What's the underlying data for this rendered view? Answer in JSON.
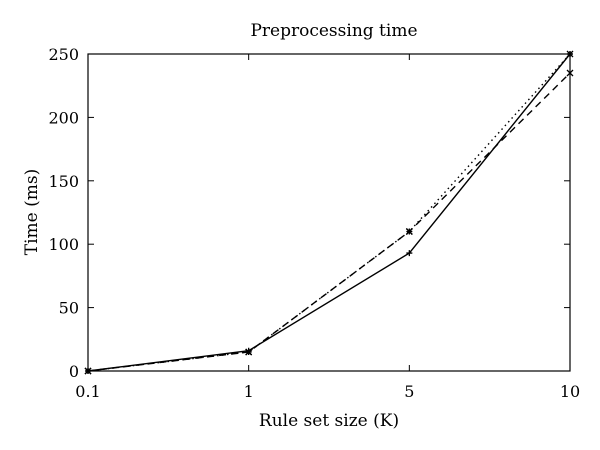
{
  "chart_data": {
    "type": "line",
    "title": "Preprocessing time",
    "xlabel": "Rule set size (K)",
    "ylabel": "Time (ms)",
    "categories": [
      "0.1",
      "1",
      "5",
      "10"
    ],
    "ylim": [
      0,
      250
    ],
    "yticks": [
      0,
      50,
      100,
      150,
      200,
      250
    ],
    "grid": false,
    "legend": "none",
    "series": [
      {
        "style": "solid",
        "marker": "plus",
        "values": [
          0,
          16,
          93,
          250
        ]
      },
      {
        "style": "dashed",
        "marker": "x",
        "values": [
          0,
          15,
          110,
          235
        ]
      },
      {
        "style": "dotted",
        "marker": "star",
        "values": [
          0,
          15,
          110,
          250
        ]
      }
    ]
  }
}
